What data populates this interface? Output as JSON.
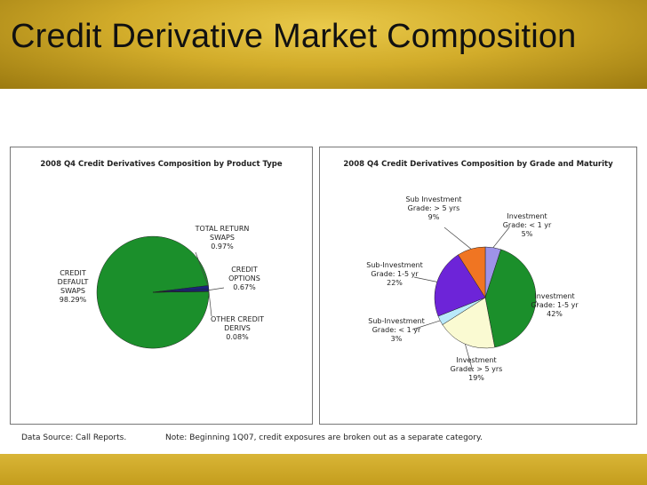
{
  "title": "Credit Derivative Market Composition",
  "footer": {
    "source": "Data Source: Call Reports.",
    "note": "Note: Beginning 1Q07, credit exposures are broken out as a separate category."
  },
  "colors": {
    "title_bar": "#d2ac2a",
    "green": "#1b8f2b",
    "navy": "#1a237e",
    "purple": "#6d24d8",
    "orange": "#f07522",
    "lavender": "#9d93e8",
    "light_blue": "#b9e9fa",
    "cream": "#fafad2"
  },
  "chart_data": [
    {
      "type": "pie",
      "title": "2008 Q4 Credit Derivatives Composition by Product Type",
      "slices": [
        {
          "name": "CREDIT DEFAULT SWAPS",
          "value": 98.29,
          "label": "98.29%",
          "color": "#1b8f2b"
        },
        {
          "name": "TOTAL RETURN SWAPS",
          "value": 0.97,
          "label": "0.97%",
          "color": "#1a237e"
        },
        {
          "name": "CREDIT OPTIONS",
          "value": 0.67,
          "label": "0.67%",
          "color": "#1a237e"
        },
        {
          "name": "OTHER CREDIT DERIVS",
          "value": 0.08,
          "label": "0.08%",
          "color": "#1a237e"
        }
      ],
      "annotations": [
        {
          "lines": [
            "CREDIT",
            "DEFAULT",
            "SWAPS",
            "98.29%"
          ]
        },
        {
          "lines": [
            "TOTAL RETURN",
            "SWAPS",
            "0.97%"
          ]
        },
        {
          "lines": [
            "CREDIT",
            "OPTIONS",
            "0.67%"
          ]
        },
        {
          "lines": [
            "OTHER CREDIT",
            "DERIVS",
            "0.08%"
          ]
        }
      ]
    },
    {
      "type": "pie",
      "title": "2008 Q4 Credit Derivatives Composition by Grade and Maturity",
      "slices": [
        {
          "name": "Investment Grade: < 1 yr",
          "value": 5,
          "label": "5%",
          "color": "#9d93e8"
        },
        {
          "name": "Investment Grade: 1-5 yr",
          "value": 42,
          "label": "42%",
          "color": "#1b8f2b"
        },
        {
          "name": "Investment Grade: > 5 yrs",
          "value": 19,
          "label": "19%",
          "color": "#fafad2"
        },
        {
          "name": "Sub-Investment Grade: < 1 yr",
          "value": 3,
          "label": "3%",
          "color": "#b9e9fa"
        },
        {
          "name": "Sub-Investment Grade: 1-5 yr",
          "value": 22,
          "label": "22%",
          "color": "#6d24d8"
        },
        {
          "name": "Sub Investment Grade: > 5 yrs",
          "value": 9,
          "label": "9%",
          "color": "#f07522"
        }
      ],
      "annotations": [
        {
          "lines": [
            "Investment",
            "Grade: < 1 yr",
            "5%"
          ]
        },
        {
          "lines": [
            "Investment",
            "Grade: 1-5 yr",
            "42%"
          ]
        },
        {
          "lines": [
            "Investment",
            "Grade: > 5 yrs",
            "19%"
          ]
        },
        {
          "lines": [
            "Sub-Investment",
            "Grade: < 1 yr",
            "3%"
          ]
        },
        {
          "lines": [
            "Sub-Investment",
            "Grade: 1-5 yr",
            "22%"
          ]
        },
        {
          "lines": [
            "Sub Investment",
            "Grade: > 5 yrs",
            "9%"
          ]
        }
      ]
    }
  ]
}
